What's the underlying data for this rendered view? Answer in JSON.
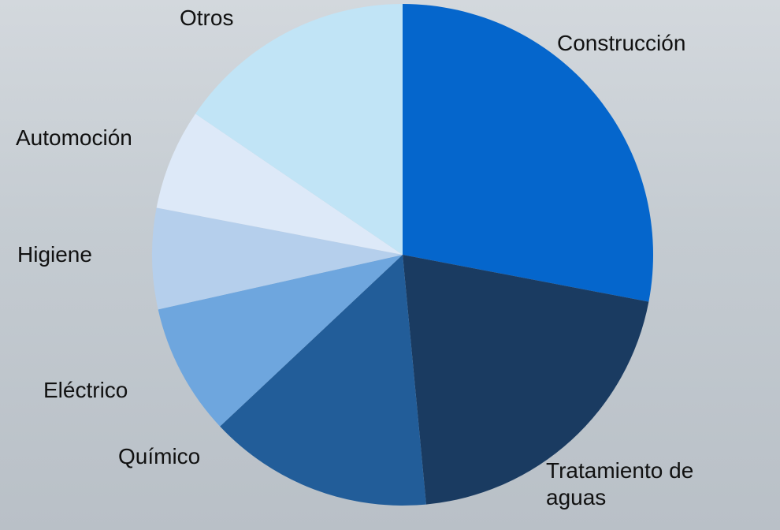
{
  "chart_data": {
    "type": "pie",
    "categories": [
      "Construcción",
      "Tratamiento de aguas",
      "Químico",
      "Eléctrico",
      "Higiene",
      "Automoción",
      "Otros"
    ],
    "values": [
      28,
      20.5,
      14.5,
      8.5,
      6.5,
      6.5,
      15.5
    ],
    "colors": [
      "#0566cc",
      "#1a3b61",
      "#225d99",
      "#6ea6de",
      "#b5cfec",
      "#dde9f8",
      "#c1e4f6"
    ]
  }
}
